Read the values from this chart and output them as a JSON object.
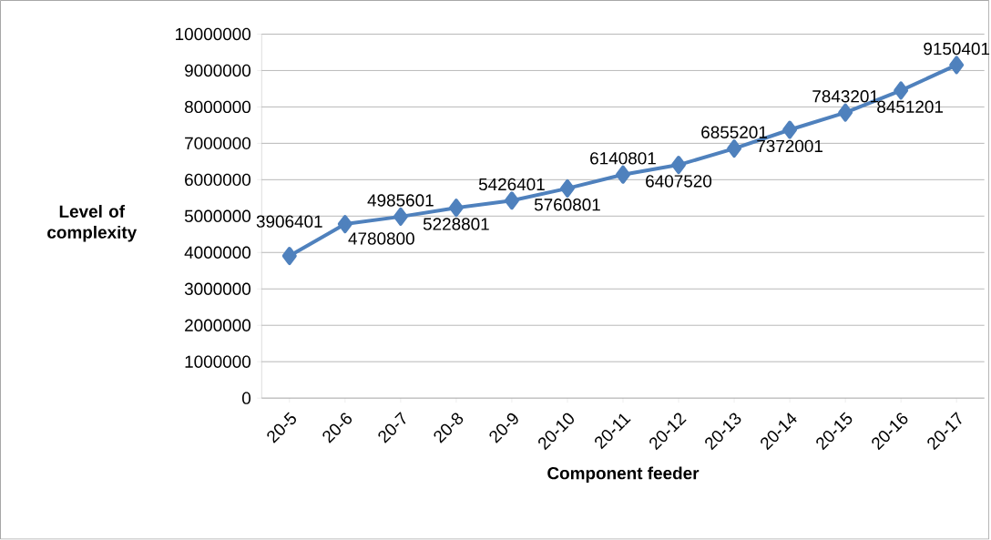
{
  "chart_data": {
    "type": "line",
    "xlabel": "Component feeder",
    "ylabel": "Level of complexity",
    "categories": [
      "20-5",
      "20-6",
      "20-7",
      "20-8",
      "20-9",
      "20-10",
      "20-11",
      "20-12",
      "20-13",
      "20-14",
      "20-15",
      "20-16",
      "20-17"
    ],
    "values": [
      3906401,
      4780800,
      4985601,
      5228801,
      5426401,
      5760801,
      6140801,
      6407520,
      6855201,
      7372001,
      7843201,
      8451201,
      9150401
    ],
    "color": "#4f81bd",
    "marker": "diamond",
    "line_style": "solid",
    "data_labels": true,
    "grid": "y",
    "ylim": [
      0,
      10000000
    ],
    "yticks": [
      0,
      1000000,
      2000000,
      3000000,
      4000000,
      5000000,
      6000000,
      7000000,
      8000000,
      9000000,
      10000000
    ]
  }
}
